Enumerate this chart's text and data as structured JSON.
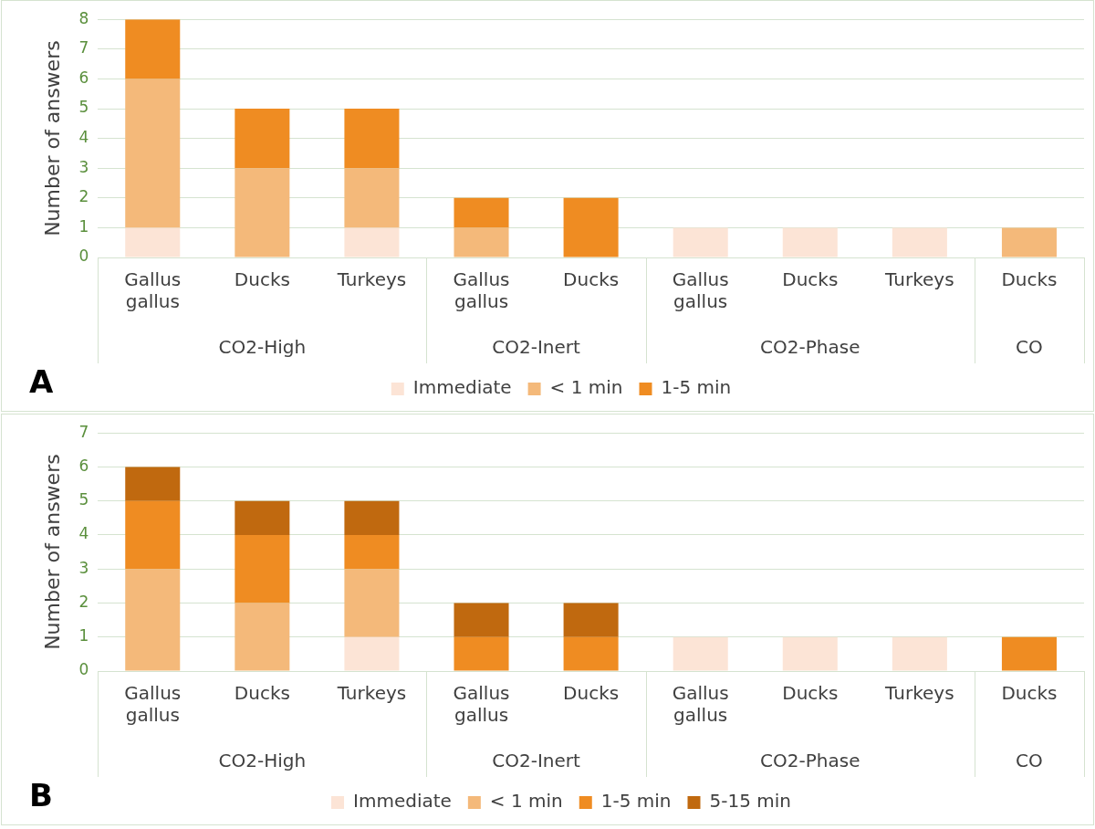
{
  "chart_data": [
    {
      "type": "bar",
      "title": "A",
      "stacked": true,
      "ylabel": "Number of answers",
      "categories": [
        "Gallus gallus",
        "Ducks",
        "Turkeys",
        "Gallus gallus",
        "Ducks",
        "Gallus gallus",
        "Ducks",
        "Turkeys",
        "Ducks"
      ],
      "series": [
        {
          "name": "Immediate",
          "color": "#fce4d6",
          "values": [
            1,
            0,
            1,
            0,
            0,
            1,
            1,
            1,
            0
          ]
        },
        {
          "name": "< 1 min",
          "color": "#f4b97a",
          "values": [
            5,
            3,
            2,
            1,
            0,
            0,
            0,
            0,
            1
          ]
        },
        {
          "name": "1-5 min",
          "color": "#ef8c22",
          "values": [
            2,
            2,
            2,
            1,
            2,
            0,
            0,
            0,
            0
          ]
        }
      ],
      "ylim": [
        0,
        8
      ],
      "yticks": [
        0,
        1,
        2,
        3,
        4,
        5,
        6,
        7,
        8
      ],
      "grid": "y",
      "legend": "bottom",
      "annotations": [
        "CO2-High",
        "CO2-Inert",
        "CO2-Phase",
        "CO"
      ]
    },
    {
      "type": "bar",
      "title": "B",
      "stacked": true,
      "ylabel": "Number of answers",
      "categories": [
        "Gallus gallus",
        "Ducks",
        "Turkeys",
        "Gallus gallus",
        "Ducks",
        "Gallus gallus",
        "Ducks",
        "Turkeys",
        "Ducks"
      ],
      "series": [
        {
          "name": "Immediate",
          "color": "#fce4d6",
          "values": [
            0,
            0,
            1,
            0,
            0,
            1,
            1,
            1,
            0
          ]
        },
        {
          "name": "< 1 min",
          "color": "#f4b97a",
          "values": [
            3,
            2,
            2,
            0,
            0,
            0,
            0,
            0,
            0
          ]
        },
        {
          "name": "1-5 min",
          "color": "#ef8c22",
          "values": [
            2,
            2,
            1,
            1,
            1,
            0,
            0,
            0,
            1
          ]
        },
        {
          "name": "5-15 min",
          "color": "#c0690f",
          "values": [
            1,
            1,
            1,
            1,
            1,
            0,
            0,
            0,
            0
          ]
        }
      ],
      "ylim": [
        0,
        7
      ],
      "yticks": [
        0,
        1,
        2,
        3,
        4,
        5,
        6,
        7
      ],
      "grid": "y",
      "legend": "bottom",
      "annotations": [
        "CO2-High",
        "CO2-Inert",
        "CO2-Phase",
        "CO"
      ]
    }
  ]
}
